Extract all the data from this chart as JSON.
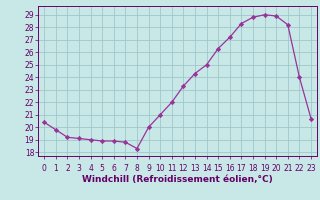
{
  "x": [
    0,
    1,
    2,
    3,
    4,
    5,
    6,
    7,
    8,
    9,
    10,
    11,
    12,
    13,
    14,
    15,
    16,
    17,
    18,
    19,
    20,
    21,
    22,
    23
  ],
  "y": [
    20.4,
    19.8,
    19.2,
    19.1,
    19.0,
    18.9,
    18.9,
    18.8,
    18.3,
    20.0,
    21.0,
    22.0,
    23.3,
    24.3,
    25.0,
    26.3,
    27.2,
    28.3,
    28.8,
    29.0,
    28.9,
    28.2,
    24.0,
    20.7
  ],
  "line_color": "#993399",
  "marker": "D",
  "markersize": 2.2,
  "linewidth": 0.9,
  "bg_color": "#c8e8e8",
  "grid_color": "#a0c8c8",
  "xlabel": "Windchill (Refroidissement éolien,°C)",
  "xlabel_fontsize": 6.5,
  "ylabel_ticks": [
    18,
    19,
    20,
    21,
    22,
    23,
    24,
    25,
    26,
    27,
    28,
    29
  ],
  "ylim": [
    17.7,
    29.7
  ],
  "xlim": [
    -0.5,
    23.5
  ],
  "xtick_labels": [
    "0",
    "1",
    "2",
    "3",
    "4",
    "5",
    "6",
    "7",
    "8",
    "9",
    "10",
    "11",
    "12",
    "13",
    "14",
    "15",
    "16",
    "17",
    "18",
    "19",
    "20",
    "21",
    "22",
    "23"
  ],
  "tick_fontsize": 5.5,
  "text_color": "#660066",
  "spine_color": "#660066"
}
